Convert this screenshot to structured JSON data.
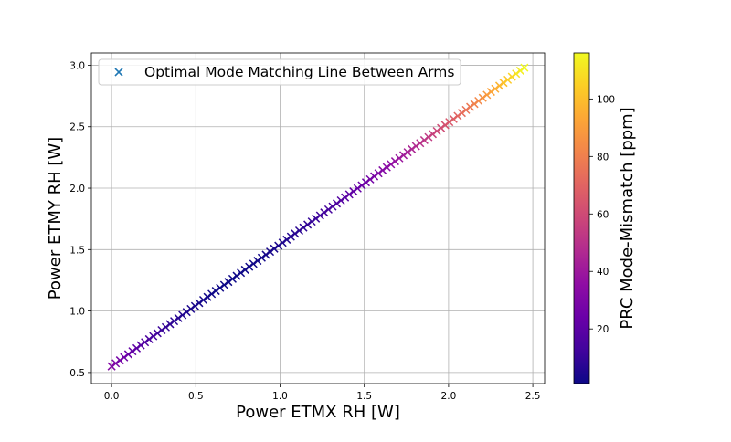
{
  "chart_data": {
    "type": "scatter",
    "title": "",
    "xlabel": "Power ETMX RH [W]",
    "ylabel": "Power ETMY RH [W]",
    "xlim": [
      -0.12,
      2.57
    ],
    "ylim": [
      0.41,
      3.1
    ],
    "xticks": [
      0.0,
      0.5,
      1.0,
      1.5,
      2.0,
      2.5
    ],
    "yticks": [
      0.5,
      1.0,
      1.5,
      2.0,
      2.5,
      3.0
    ],
    "xtick_labels": [
      "0.0",
      "0.5",
      "1.0",
      "1.5",
      "2.0",
      "2.5"
    ],
    "ytick_labels": [
      "0.5",
      "1.0",
      "1.5",
      "2.0",
      "2.5",
      "3.0"
    ],
    "grid": true,
    "legend": {
      "placement": "top-left",
      "entries": [
        "Optimal Mode Matching Line Between Arms"
      ]
    },
    "series": [
      {
        "name": "Optimal Mode Matching Line Between Arms",
        "marker": "x",
        "x_start": 0.0,
        "x_end": 2.45,
        "y_start": 0.55,
        "y_end": 2.98,
        "n_points": 100,
        "color_value_note": "PRC Mode-Mismatch [ppm], minimum near x=0.7"
      }
    ],
    "colorbar": {
      "label": "PRC Mode-Mismatch [ppm]",
      "colormap": "plasma",
      "range": [
        1,
        116
      ],
      "ticks": [
        20,
        40,
        60,
        80,
        100
      ],
      "tick_labels": [
        "20",
        "40",
        "60",
        "80",
        "100"
      ]
    }
  }
}
